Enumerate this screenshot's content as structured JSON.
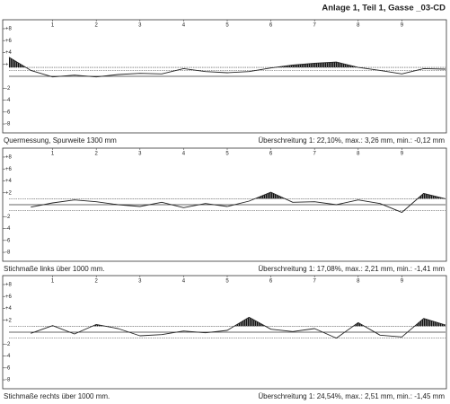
{
  "page_title": "Anlage 1, Teil 1, Gasse _03-CD",
  "chart_data": [
    {
      "type": "line",
      "caption": "Quermessung, Spurweite 1300 mm",
      "summary": "Überschreitung 1: 22,10%, max.: 3,26 mm, min.: -0,12 mm",
      "xlim": [
        0,
        10
      ],
      "xticks": [
        1,
        2,
        3,
        4,
        5,
        6,
        7,
        8,
        9
      ],
      "ylim": [
        -9.5,
        9.5
      ],
      "yticks": [
        {
          "value": 8,
          "label": "+8"
        },
        {
          "value": 6,
          "label": "+6"
        },
        {
          "value": 4,
          "label": "+4"
        },
        {
          "value": 2,
          "label": "+2"
        },
        -2,
        -4,
        -6,
        -8
      ],
      "thresholds": [
        1.5,
        1
      ],
      "color": "#222222",
      "x": [
        0,
        0.5,
        1,
        1.5,
        2,
        2.5,
        3,
        3.5,
        4,
        4.5,
        5,
        5.5,
        6,
        6.5,
        7,
        7.5,
        8,
        8.5,
        9,
        9.5,
        10
      ],
      "values": [
        3.2,
        1.0,
        -0.1,
        0.2,
        -0.1,
        0.3,
        0.5,
        0.4,
        1.3,
        0.8,
        0.6,
        0.8,
        1.4,
        1.9,
        2.2,
        2.4,
        1.5,
        1.0,
        0.4,
        1.3,
        1.2
      ]
    },
    {
      "type": "line",
      "caption": "Stichmaße links über 1000 mm.",
      "summary": "Überschreitung 1: 17,08%, max.: 2,21 mm, min.: -1,41 mm",
      "xlim": [
        0,
        10
      ],
      "xticks": [
        1,
        2,
        3,
        4,
        5,
        6,
        7,
        8,
        9
      ],
      "ylim": [
        -9.5,
        9.5
      ],
      "yticks": [
        {
          "value": 8,
          "label": "+8"
        },
        {
          "value": 6,
          "label": "+6"
        },
        {
          "value": 4,
          "label": "+4"
        },
        {
          "value": 2,
          "label": "+2"
        },
        -2,
        -4,
        -6,
        -8
      ],
      "thresholds": [
        1,
        -1
      ],
      "color": "#222222",
      "x": [
        0,
        0.5,
        1,
        1.5,
        2,
        2.5,
        3,
        3.5,
        4,
        4.5,
        5,
        5.5,
        6,
        6.5,
        7,
        7.5,
        8,
        8.5,
        9,
        9.5,
        10
      ],
      "values": [
        null,
        -0.4,
        0.3,
        0.8,
        0.5,
        0.0,
        -0.3,
        0.4,
        -0.5,
        0.2,
        -0.3,
        0.6,
        2.1,
        0.4,
        0.5,
        0.0,
        0.8,
        0.2,
        -1.3,
        1.9,
        1.0
      ]
    },
    {
      "type": "line",
      "caption": "Stichmaße rechts über 1000 mm.",
      "summary": "Überschreitung 1: 24,54%, max.: 2,51 mm, min.: -1,45 mm",
      "xlim": [
        0,
        10
      ],
      "xticks": [
        1,
        2,
        3,
        4,
        5,
        6,
        7,
        8,
        9
      ],
      "ylim": [
        -9.5,
        9.5
      ],
      "yticks": [
        {
          "value": 8,
          "label": "+8"
        },
        {
          "value": 6,
          "label": "+6"
        },
        {
          "value": 4,
          "label": "+4"
        },
        {
          "value": 2,
          "label": "+2"
        },
        -2,
        -4,
        -6,
        -8
      ],
      "thresholds": [
        1,
        -1
      ],
      "color": "#222222",
      "x": [
        0,
        0.5,
        1,
        1.5,
        2,
        2.5,
        3,
        3.5,
        4,
        4.5,
        5,
        5.5,
        6,
        6.5,
        7,
        7.5,
        8,
        8.5,
        9,
        9.5,
        10
      ],
      "values": [
        null,
        -0.2,
        1.1,
        -0.3,
        1.3,
        0.6,
        -0.6,
        -0.4,
        0.2,
        -0.1,
        0.3,
        2.5,
        0.5,
        0.1,
        0.6,
        -1.0,
        1.6,
        -0.5,
        -0.8,
        2.3,
        1.2
      ]
    }
  ]
}
